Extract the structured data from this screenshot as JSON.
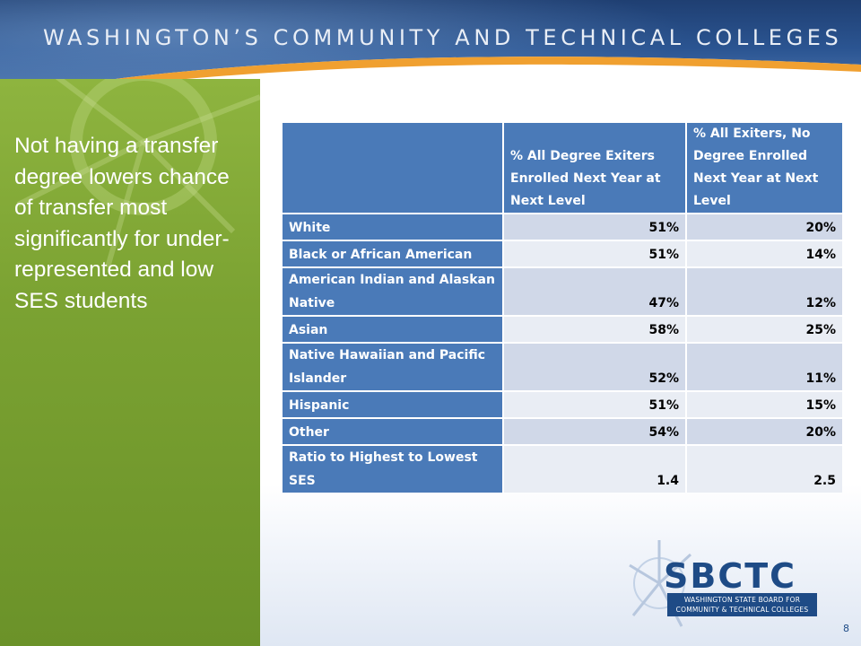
{
  "header": {
    "title": "WASHINGTON’S COMMUNITY AND TECHNICAL COLLEGES"
  },
  "left_panel": {
    "text": "Not having a transfer degree lowers chance of transfer most significantly for under-represented and low SES students"
  },
  "table": {
    "columns": [
      "",
      "% All Degree Exiters Enrolled Next Year at Next Level",
      "% All Exiters, No Degree Enrolled Next Year at Next Level"
    ],
    "rows": [
      {
        "label": "White",
        "degree": "51%",
        "no_degree": "20%"
      },
      {
        "label": "Black or African American",
        "degree": "51%",
        "no_degree": "14%"
      },
      {
        "label": "American Indian and Alaskan Native",
        "degree": "47%",
        "no_degree": "12%"
      },
      {
        "label": "Asian",
        "degree": "58%",
        "no_degree": "25%"
      },
      {
        "label": "Native Hawaiian and Pacific Islander",
        "degree": "52%",
        "no_degree": "11%"
      },
      {
        "label": "Hispanic",
        "degree": "51%",
        "no_degree": "15%"
      },
      {
        "label": "Other",
        "degree": "54%",
        "no_degree": "20%"
      },
      {
        "label": "Ratio to Highest to Lowest SES",
        "degree": "1.4",
        "no_degree": "2.5"
      }
    ]
  },
  "logo": {
    "name": "SBCTC",
    "line1": "WASHINGTON STATE BOARD FOR",
    "line2": "COMMUNITY & TECHNICAL COLLEGES"
  },
  "page_number": "8",
  "colors": {
    "header_blue": "#2b5592",
    "accent_orange": "#f0a030",
    "panel_green": "#7ba232",
    "table_header_blue": "#4a7ab8",
    "cell_shade_dark": "#d0d8e8",
    "cell_shade_light": "#e9edf4",
    "logo_blue": "#1e4b86"
  }
}
